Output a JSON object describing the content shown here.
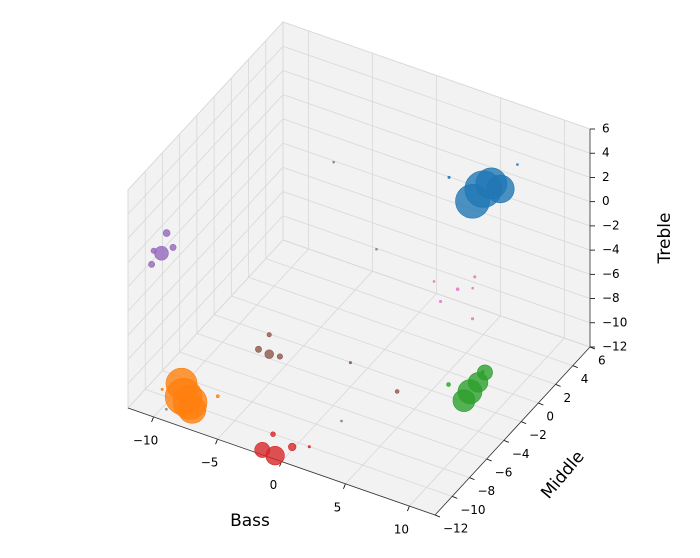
{
  "chart_data": {
    "type": "scatter3d",
    "xlabel": "Bass",
    "ylabel": "Middle",
    "zlabel": "Treble",
    "xlim": [
      -12,
      12
    ],
    "ylim": [
      -12,
      6
    ],
    "zlim": [
      -12,
      6
    ],
    "xticks": [
      {
        "value": -10,
        "label": "−10"
      },
      {
        "value": -5,
        "label": "−5"
      },
      0,
      5,
      10
    ],
    "yticks": [
      {
        "value": -12,
        "label": "−12"
      },
      {
        "value": -10,
        "label": "−10"
      },
      {
        "value": -8,
        "label": "−8"
      },
      {
        "value": -6,
        "label": "−6"
      },
      {
        "value": -4,
        "label": "−4"
      },
      {
        "value": -2,
        "label": "−2"
      },
      0,
      2,
      4,
      6
    ],
    "zticks": [
      {
        "value": -12,
        "label": "−12"
      },
      {
        "value": -10,
        "label": "−10"
      },
      {
        "value": -8,
        "label": "−8"
      },
      {
        "value": -6,
        "label": "−6"
      },
      {
        "value": -4,
        "label": "−4"
      },
      {
        "value": -2,
        "label": "−2"
      },
      0,
      2,
      4,
      6
    ],
    "grid": true,
    "series": [
      {
        "color": "#1f77b4",
        "x": [
          5,
          4.5,
          5.5,
          6,
          7,
          3
        ],
        "y": [
          4,
          3.5,
          4.2,
          4.5,
          5,
          3
        ],
        "z": [
          0,
          -0.8,
          0.5,
          0,
          2,
          1
        ],
        "sizes": [
          700,
          600,
          500,
          400,
          2,
          3
        ]
      },
      {
        "color": "#ff7f0e",
        "x": [
          -9,
          -8.5,
          -9.5,
          -8,
          -7,
          -10
        ],
        "y": [
          -10,
          -10,
          -9.5,
          -10.5,
          -9,
          -11
        ],
        "z": [
          -11.5,
          -11.8,
          -11,
          -11.8,
          -11.5,
          -10.5
        ],
        "sizes": [
          700,
          600,
          500,
          400,
          5,
          3
        ]
      },
      {
        "color": "#2ca02c",
        "x": [
          8,
          8.3,
          7.8,
          8.5,
          7,
          9
        ],
        "y": [
          -2,
          -1.5,
          -2.4,
          -1,
          -3,
          -2
        ],
        "z": [
          -11,
          -10.5,
          -11.5,
          -10,
          -10,
          -9
        ],
        "sizes": [
          300,
          200,
          250,
          120,
          8,
          5
        ]
      },
      {
        "color": "#d62728",
        "x": [
          -0.5,
          -1.5,
          0.5,
          -1,
          1.5
        ],
        "y": [
          -12,
          -12,
          -11.5,
          -11.5,
          -11
        ],
        "z": [
          -11.7,
          -11.6,
          -11,
          -10.5,
          -11
        ],
        "sizes": [
          180,
          120,
          30,
          12,
          3
        ]
      },
      {
        "color": "#9467bd",
        "x": [
          -11,
          -11,
          -11.5,
          -10.5,
          -11
        ],
        "y": [
          -9.6,
          -9,
          -10,
          -9,
          -10.5
        ],
        "z": [
          -0.7,
          0.5,
          -1.5,
          -0.5,
          0.2
        ],
        "sizes": [
          100,
          25,
          20,
          20,
          15
        ]
      },
      {
        "color": "#8c564b",
        "x": [
          -5,
          -5.5,
          -4.5,
          -5,
          0,
          5
        ],
        "y": [
          -6,
          -6.5,
          -5.5,
          -6,
          -4,
          -6
        ],
        "z": [
          -9.6,
          -9,
          -10,
          -8,
          -10,
          -9
        ],
        "sizes": [
          40,
          20,
          15,
          10,
          3,
          8
        ]
      },
      {
        "color": "#e377c2",
        "x": [
          3,
          4,
          2,
          3.5,
          4.5,
          2.5
        ],
        "y": [
          4,
          4.5,
          3.5,
          5,
          3.5,
          2
        ],
        "z": [
          -9,
          -8,
          -10,
          -9.5,
          -10.5,
          -7
        ],
        "sizes": [
          4,
          3,
          3,
          2,
          3,
          2
        ]
      },
      {
        "color": "#7f7f7f",
        "x": [
          -2,
          2,
          -4,
          -9
        ],
        "y": [
          2,
          -8,
          0,
          -12
        ],
        "z": [
          -6,
          -11,
          2,
          -11
        ],
        "sizes": [
          2,
          2,
          2,
          2
        ]
      }
    ]
  }
}
